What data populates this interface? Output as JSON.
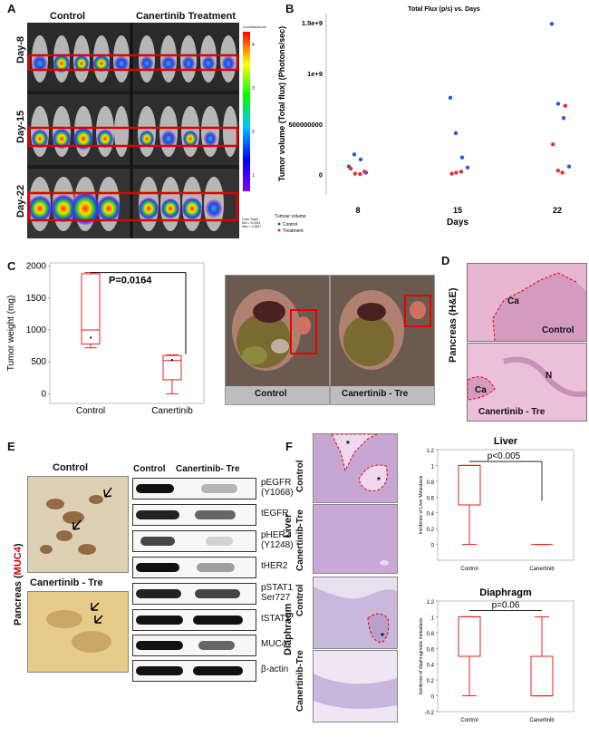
{
  "colors": {
    "control": "#2a5bd7",
    "treatment": "#e0303a",
    "box": "#e02020",
    "axis": "#444"
  },
  "panels": {
    "A": {
      "letter": "A",
      "col_control": "Control",
      "col_treatment": "Canertinib Treatment",
      "rows": [
        "Day-8",
        "Day-15",
        "Day-22"
      ],
      "colorbar_ticks": [
        "4",
        "3",
        "2",
        "1"
      ],
      "colorbar_top": "Luminescence",
      "colorbar_scale": "Color Scale\nMin = 5.00e4\nMax = 2.38e7"
    },
    "B": {
      "letter": "B"
    },
    "C": {
      "letter": "C",
      "pvalue": "P=0.0164",
      "photo_control": "Control",
      "photo_treatment": "Canertinib - Tre"
    },
    "D": {
      "letter": "D",
      "ylabel": "Pancreas (H&E)",
      "top_label_ca": "Ca",
      "top_label": "Control",
      "bottom_label_ca": "Ca",
      "bottom_label_n": "N",
      "bottom_label": "Canertinib - Tre"
    },
    "E": {
      "letter": "E",
      "title_control": "Control",
      "title_treatment": "Canertinib - Tre",
      "side_label_prefix": "Pancreas (",
      "side_label_marker": "MUC4",
      "side_label_suffix": ")",
      "blot_col_control": "Control",
      "blot_col_treatment": "Canertinib- Tre",
      "blots": [
        {
          "label": "pEGFR\n(Y1068)"
        },
        {
          "label": "tEGFR"
        },
        {
          "label": "pHER2\n(Y1248)"
        },
        {
          "label": "tHER2"
        },
        {
          "label": "pSTAT1\nSer727"
        },
        {
          "label": "tSTAT1"
        },
        {
          "label": "MUC4"
        },
        {
          "label": "β-actin"
        }
      ]
    },
    "F": {
      "letter": "F",
      "liver": "Liver",
      "diaphragm": "Diaphragm",
      "control": "Control",
      "treatment": "Canertinib-Tre"
    }
  },
  "chart_data": [
    {
      "id": "B",
      "type": "scatter",
      "title": "Total Flux (p/s) vs. Days",
      "xlabel": "Days",
      "ylabel": "Tumor volume (Total flux) (Photons/sec)",
      "x_ticks": [
        "8",
        "15",
        "22"
      ],
      "y_ticks": [
        "0",
        "500000000",
        "1e+9",
        "1.5e+9"
      ],
      "ylim": [
        -200000000,
        1600000000
      ],
      "legend_title": "Tumour volume",
      "series": [
        {
          "name": "Control",
          "color": "#2a5bd7",
          "points": [
            [
              8,
              80000000
            ],
            [
              8,
              200000000
            ],
            [
              8,
              150000000
            ],
            [
              8,
              20000000
            ],
            [
              15,
              760000000
            ],
            [
              15,
              410000000
            ],
            [
              15,
              170000000
            ],
            [
              15,
              70000000
            ],
            [
              22,
              1490000000
            ],
            [
              22,
              700000000
            ],
            [
              22,
              560000000
            ],
            [
              22,
              80000000
            ]
          ]
        },
        {
          "name": "Treatment",
          "color": "#e0303a",
          "points": [
            [
              8,
              60000000
            ],
            [
              8,
              10000000
            ],
            [
              8,
              5000000
            ],
            [
              8,
              30000000
            ],
            [
              15,
              10000000
            ],
            [
              15,
              20000000
            ],
            [
              15,
              30000000
            ],
            [
              22,
              680000000
            ],
            [
              22,
              300000000
            ],
            [
              22,
              40000000
            ],
            [
              22,
              20000000
            ]
          ]
        }
      ]
    },
    {
      "id": "C",
      "type": "box",
      "ylabel": "Tumor weight (mg)",
      "categories": [
        "Control",
        "Canertinib"
      ],
      "y_ticks": [
        "0",
        "500",
        "1000",
        "1500",
        "2000"
      ],
      "ylim": [
        -150,
        2050
      ],
      "boxes": [
        {
          "min": 720,
          "q1": 780,
          "median": 1000,
          "q3": 1880,
          "max": 1900,
          "mean": 880,
          "extra_max": 1880
        },
        {
          "min": 0,
          "q1": 220,
          "median": 520,
          "q3": 600,
          "max": 610,
          "mean": 530
        }
      ]
    },
    {
      "id": "F-liver",
      "type": "box",
      "title": "Liver",
      "ylabel": "Incidence of Liver Metastasis",
      "categories": [
        "Control",
        "Canertinib"
      ],
      "y_ticks": [
        "0",
        "0.2",
        "0.4",
        "0.6",
        "0.8",
        "1",
        "1.2"
      ],
      "ylim": [
        -0.2,
        1.2
      ],
      "pvalue": "p<0.005",
      "boxes": [
        {
          "min": 0,
          "q1": 0.5,
          "median": 1,
          "q3": 1,
          "max": 1
        },
        {
          "min": 0,
          "q1": 0,
          "median": 0,
          "q3": 0,
          "max": 0
        }
      ]
    },
    {
      "id": "F-diaphragm",
      "type": "box",
      "title": "Diaphragm",
      "ylabel": "Incidence of diaphragmatic metastasis",
      "categories": [
        "Control",
        "Canertinib"
      ],
      "y_ticks": [
        "-0.2",
        "0",
        "0.2",
        "0.4",
        "0.6",
        "0.8",
        "1",
        "1.2"
      ],
      "ylim": [
        -0.2,
        1.2
      ],
      "pvalue": "p=0.06",
      "boxes": [
        {
          "min": 0,
          "q1": 0.5,
          "median": 1,
          "q3": 1,
          "max": 1
        },
        {
          "min": 0,
          "q1": 0,
          "median": 0,
          "q3": 0.5,
          "max": 1
        }
      ]
    }
  ]
}
